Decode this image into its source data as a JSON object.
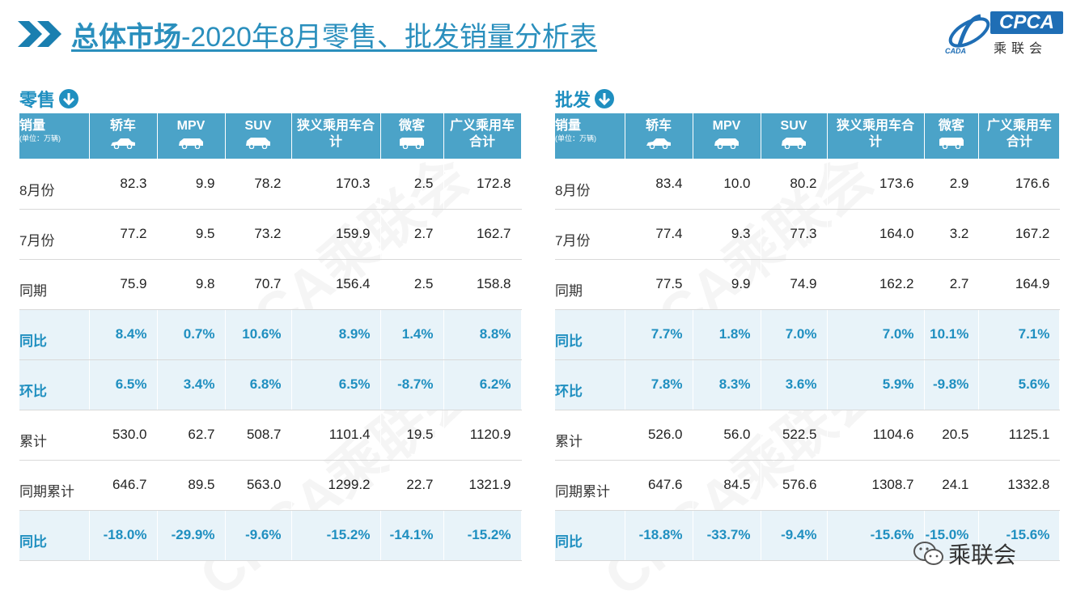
{
  "header": {
    "title_bold": "总体市场",
    "title_rest": "-2020年8月零售、批发销量分析表"
  },
  "logo": {
    "text": "CPCA",
    "cn": "乘联会",
    "sub": "CADA"
  },
  "watermark": "CPCA乘联会",
  "columns": {
    "label": "销量",
    "unit": "(单位：万辆)",
    "items": [
      {
        "name": "轿车",
        "icon": "sedan-icon"
      },
      {
        "name": "MPV",
        "icon": "mpv-icon"
      },
      {
        "name": "SUV",
        "icon": "suv-icon"
      },
      {
        "name": "狭义乘用车合计"
      },
      {
        "name": "微客",
        "icon": "minivan-icon"
      },
      {
        "name": "广义乘用车合计"
      }
    ]
  },
  "retail": {
    "title": "零售",
    "rows": [
      {
        "label": "8月份",
        "hl": false,
        "values": [
          "82.3",
          "9.9",
          "78.2",
          "170.3",
          "2.5",
          "172.8"
        ]
      },
      {
        "label": "7月份",
        "hl": false,
        "values": [
          "77.2",
          "9.5",
          "73.2",
          "159.9",
          "2.7",
          "162.7"
        ]
      },
      {
        "label": "同期",
        "hl": false,
        "values": [
          "75.9",
          "9.8",
          "70.7",
          "156.4",
          "2.5",
          "158.8"
        ]
      },
      {
        "label": "同比",
        "hl": true,
        "values": [
          "8.4%",
          "0.7%",
          "10.6%",
          "8.9%",
          "1.4%",
          "8.8%"
        ]
      },
      {
        "label": "环比",
        "hl": true,
        "values": [
          "6.5%",
          "3.4%",
          "6.8%",
          "6.5%",
          "-8.7%",
          "6.2%"
        ]
      },
      {
        "label": "累计",
        "hl": false,
        "values": [
          "530.0",
          "62.7",
          "508.7",
          "1101.4",
          "19.5",
          "1120.9"
        ]
      },
      {
        "label": "同期累计",
        "hl": false,
        "values": [
          "646.7",
          "89.5",
          "563.0",
          "1299.2",
          "22.7",
          "1321.9"
        ]
      },
      {
        "label": "同比",
        "hl": true,
        "values": [
          "-18.0%",
          "-29.9%",
          "-9.6%",
          "-15.2%",
          "-14.1%",
          "-15.2%"
        ]
      }
    ]
  },
  "wholesale": {
    "title": "批发",
    "rows": [
      {
        "label": "8月份",
        "hl": false,
        "values": [
          "83.4",
          "10.0",
          "80.2",
          "173.6",
          "2.9",
          "176.6"
        ]
      },
      {
        "label": "7月份",
        "hl": false,
        "values": [
          "77.4",
          "9.3",
          "77.3",
          "164.0",
          "3.2",
          "167.2"
        ]
      },
      {
        "label": "同期",
        "hl": false,
        "values": [
          "77.5",
          "9.9",
          "74.9",
          "162.2",
          "2.7",
          "164.9"
        ]
      },
      {
        "label": "同比",
        "hl": true,
        "values": [
          "7.7%",
          "1.8%",
          "7.0%",
          "7.0%",
          "10.1%",
          "7.1%"
        ]
      },
      {
        "label": "环比",
        "hl": true,
        "values": [
          "7.8%",
          "8.3%",
          "3.6%",
          "5.9%",
          "-9.8%",
          "5.6%"
        ]
      },
      {
        "label": "累计",
        "hl": false,
        "values": [
          "526.0",
          "56.0",
          "522.5",
          "1104.6",
          "20.5",
          "1125.1"
        ]
      },
      {
        "label": "同期累计",
        "hl": false,
        "values": [
          "647.6",
          "84.5",
          "576.6",
          "1308.7",
          "24.1",
          "1332.8"
        ]
      },
      {
        "label": "同比",
        "hl": true,
        "values": [
          "-18.8%",
          "-33.7%",
          "-9.4%",
          "-15.6%",
          "-15.0%",
          "-15.6%"
        ]
      }
    ]
  },
  "footer": {
    "wechat": "乘联会"
  }
}
